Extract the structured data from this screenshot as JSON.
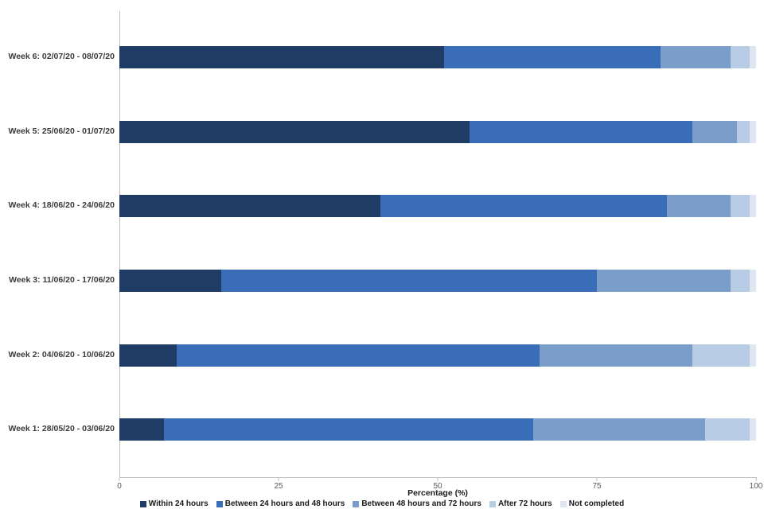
{
  "chart_data": {
    "type": "bar",
    "orientation": "horizontal",
    "stacked": true,
    "title": "",
    "xlabel": "Percentage (%)",
    "ylabel": "",
    "xlim": [
      0,
      100
    ],
    "xticks": [
      0,
      25,
      50,
      75,
      100
    ],
    "grid": false,
    "legend_position": "bottom",
    "categories": [
      "Week 6: 02/07/20 - 08/07/20",
      "Week 5: 25/06/20 - 01/07/20",
      "Week 4: 18/06/20 - 24/06/20",
      "Week 3: 11/06/20 - 17/06/20",
      "Week 2: 04/06/20 - 10/06/20",
      "Week 1: 28/05/20 - 03/06/20"
    ],
    "series": [
      {
        "name": "Within 24 hours",
        "color": "#1f3c64",
        "values": [
          51,
          55,
          41,
          16,
          9,
          7
        ]
      },
      {
        "name": "Between 24 hours and 48 hours",
        "color": "#3a6db8",
        "values": [
          34,
          35,
          45,
          59,
          57,
          58
        ]
      },
      {
        "name": "Between 48 hours and 72 hours",
        "color": "#7b9dc9",
        "values": [
          11,
          7,
          10,
          21,
          24,
          27
        ]
      },
      {
        "name": "After 72 hours",
        "color": "#b9cce6",
        "values": [
          3,
          2,
          3,
          3,
          9,
          7
        ]
      },
      {
        "name": "Not completed",
        "color": "#dfe6f1",
        "values": [
          1,
          1,
          1,
          1,
          1,
          1
        ]
      }
    ]
  }
}
